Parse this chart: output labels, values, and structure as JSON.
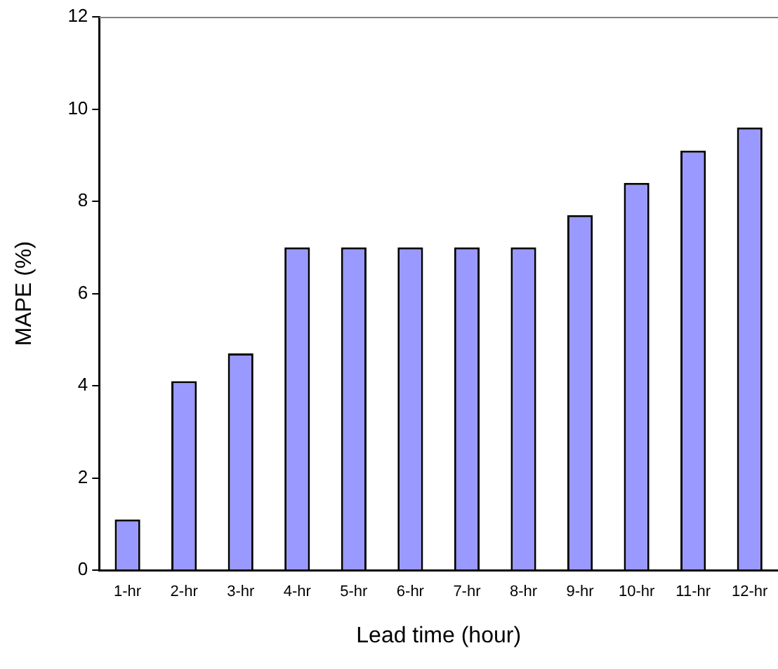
{
  "chart_data": {
    "type": "bar",
    "xlabel": "Lead time (hour)",
    "ylabel": "MAPE (%)",
    "categories": [
      "1-hr",
      "2-hr",
      "3-hr",
      "4-hr",
      "5-hr",
      "6-hr",
      "7-hr",
      "8-hr",
      "9-hr",
      "10-hr",
      "11-hr",
      "12-hr"
    ],
    "values": [
      1.1,
      4.1,
      4.7,
      7.0,
      7.0,
      7.0,
      7.0,
      7.0,
      7.7,
      8.4,
      9.1,
      9.6
    ],
    "color": "#9999ff",
    "ylim": [
      0,
      12
    ],
    "yticks": [
      0,
      2,
      4,
      6,
      8,
      10,
      12
    ],
    "grid": false,
    "legend": false
  }
}
